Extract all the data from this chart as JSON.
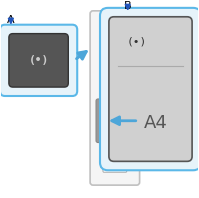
{
  "bg_color": "#ffffff",
  "blue_color": "#4da6d9",
  "dark_blue_arrow": "#2255bb",
  "printer_facecolor": "#f5f5f5",
  "printer_edgecolor": "#b0b0b0",
  "callout_facecolor": "#e6f3fa",
  "callout_edgecolor": "#5bb8e8",
  "btn_dark": "#888888",
  "btn_white": "#ffffff",
  "panel_color": "#cccccc",
  "label_a": "A",
  "label_b": "B",
  "wifi_text": "(•)",
  "a4_text": "A4"
}
